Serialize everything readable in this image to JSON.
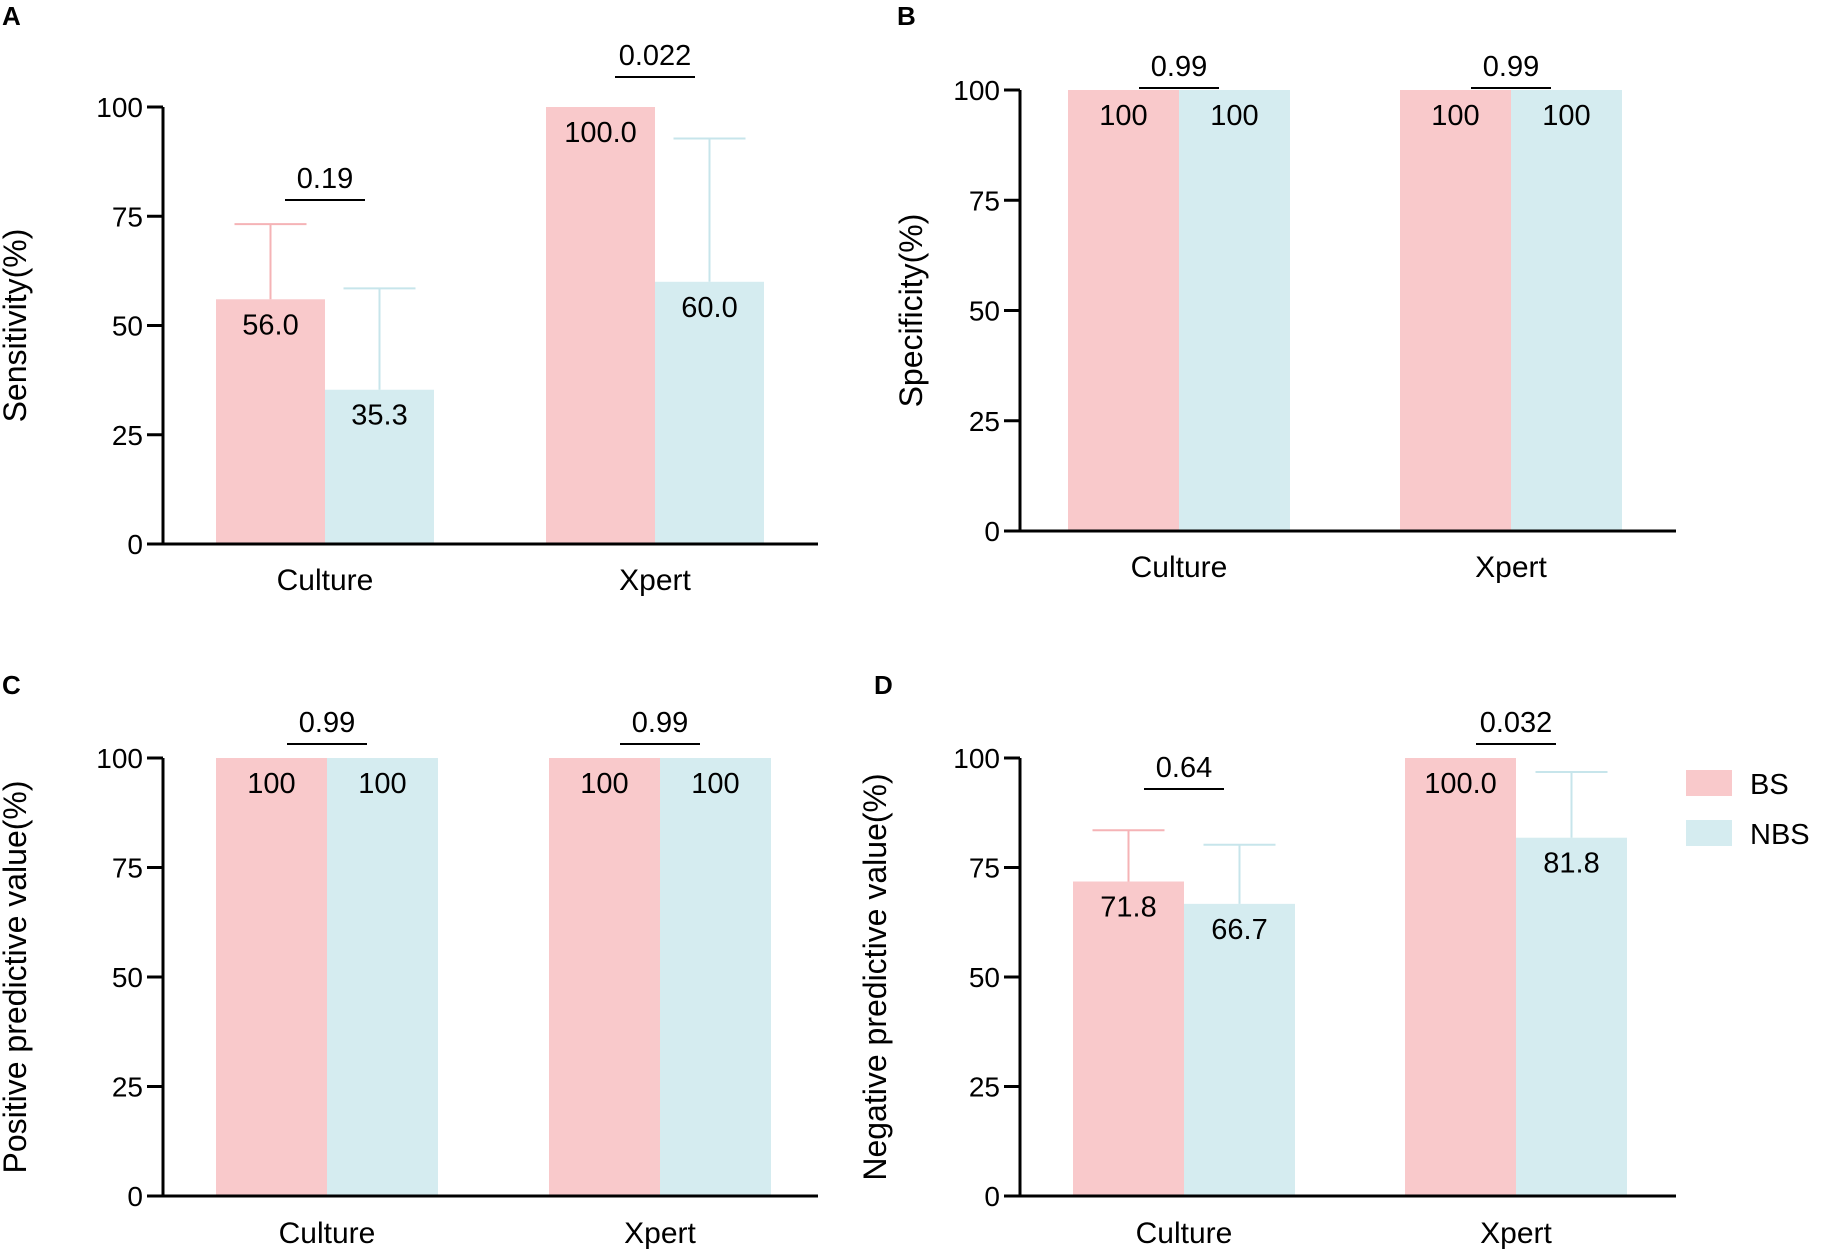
{
  "colors": {
    "BS": "#f9c9cb",
    "NBS": "#d5ecf0",
    "BS_err": "#f5b3b6",
    "NBS_err": "#c7e5eb",
    "axis": "#000000"
  },
  "legend": {
    "items": [
      {
        "key": "BS",
        "label": "BS"
      },
      {
        "key": "NBS",
        "label": "NBS"
      }
    ],
    "position": "right"
  },
  "chart_data": [
    {
      "panel": "A",
      "type": "bar",
      "ylabel": "Sensitivity(%)",
      "ylim": [
        0,
        100
      ],
      "yticks": [
        0,
        25,
        50,
        75,
        100
      ],
      "categories": [
        "Culture",
        "Xpert"
      ],
      "series": [
        {
          "name": "BS",
          "values": [
            56.0,
            100.0
          ],
          "labels": [
            "56.0",
            "100.0"
          ],
          "err_upper": [
            73.2,
            null
          ]
        },
        {
          "name": "NBS",
          "values": [
            35.3,
            60.0
          ],
          "labels": [
            "35.3",
            "60.0"
          ],
          "err_upper": [
            58.5,
            92.8
          ]
        }
      ],
      "p_values": [
        "0.19",
        "0.022"
      ]
    },
    {
      "panel": "B",
      "type": "bar",
      "ylabel": "Specificity(%)",
      "ylim": [
        0,
        100
      ],
      "yticks": [
        0,
        25,
        50,
        75,
        100
      ],
      "categories": [
        "Culture",
        "Xpert"
      ],
      "series": [
        {
          "name": "BS",
          "values": [
            100,
            100
          ],
          "labels": [
            "100",
            "100"
          ],
          "err_upper": [
            null,
            null
          ]
        },
        {
          "name": "NBS",
          "values": [
            100,
            100
          ],
          "labels": [
            "100",
            "100"
          ],
          "err_upper": [
            null,
            null
          ]
        }
      ],
      "p_values": [
        "0.99",
        "0.99"
      ]
    },
    {
      "panel": "C",
      "type": "bar",
      "ylabel": "Positive predictive value(%)",
      "ylim": [
        0,
        100
      ],
      "yticks": [
        0,
        25,
        50,
        75,
        100
      ],
      "categories": [
        "Culture",
        "Xpert"
      ],
      "series": [
        {
          "name": "BS",
          "values": [
            100,
            100
          ],
          "labels": [
            "100",
            "100"
          ],
          "err_upper": [
            null,
            null
          ]
        },
        {
          "name": "NBS",
          "values": [
            100,
            100
          ],
          "labels": [
            "100",
            "100"
          ],
          "err_upper": [
            null,
            null
          ]
        }
      ],
      "p_values": [
        "0.99",
        "0.99"
      ]
    },
    {
      "panel": "D",
      "type": "bar",
      "ylabel": "Negative predictive value(%)",
      "ylim": [
        0,
        100
      ],
      "yticks": [
        0,
        25,
        50,
        75,
        100
      ],
      "categories": [
        "Culture",
        "Xpert"
      ],
      "series": [
        {
          "name": "BS",
          "values": [
            71.8,
            100.0
          ],
          "labels": [
            "71.8",
            "100.0"
          ],
          "err_upper": [
            83.5,
            null
          ]
        },
        {
          "name": "NBS",
          "values": [
            66.7,
            81.8
          ],
          "labels": [
            "66.7",
            "81.8"
          ],
          "err_upper": [
            80.2,
            96.8
          ]
        }
      ],
      "p_values": [
        "0.64",
        "0.032"
      ]
    }
  ]
}
